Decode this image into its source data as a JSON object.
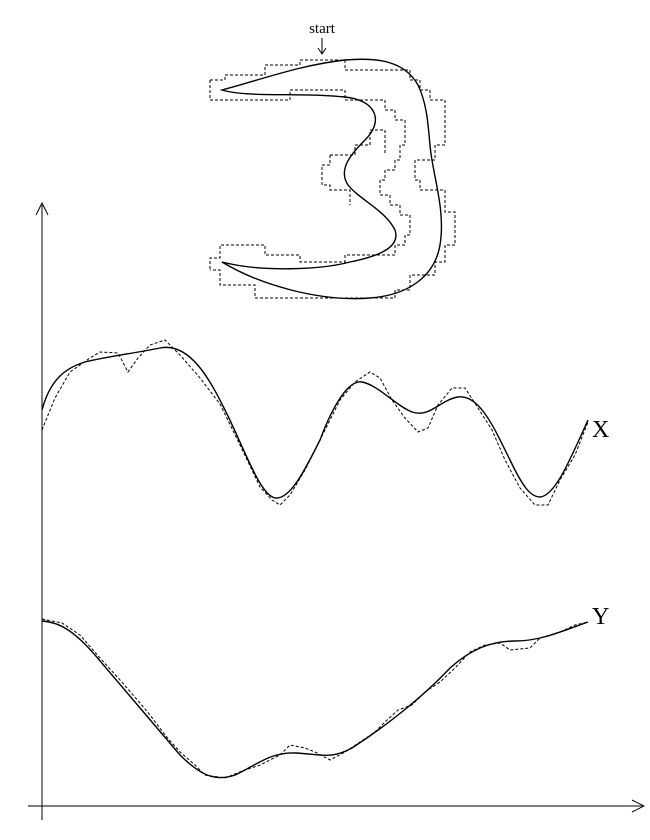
{
  "digit_figure": {
    "start_label": "start"
  },
  "series": {
    "x_label": "X",
    "y_label": "Y"
  },
  "colors": {
    "ink": "#000000",
    "background": "#ffffff"
  }
}
